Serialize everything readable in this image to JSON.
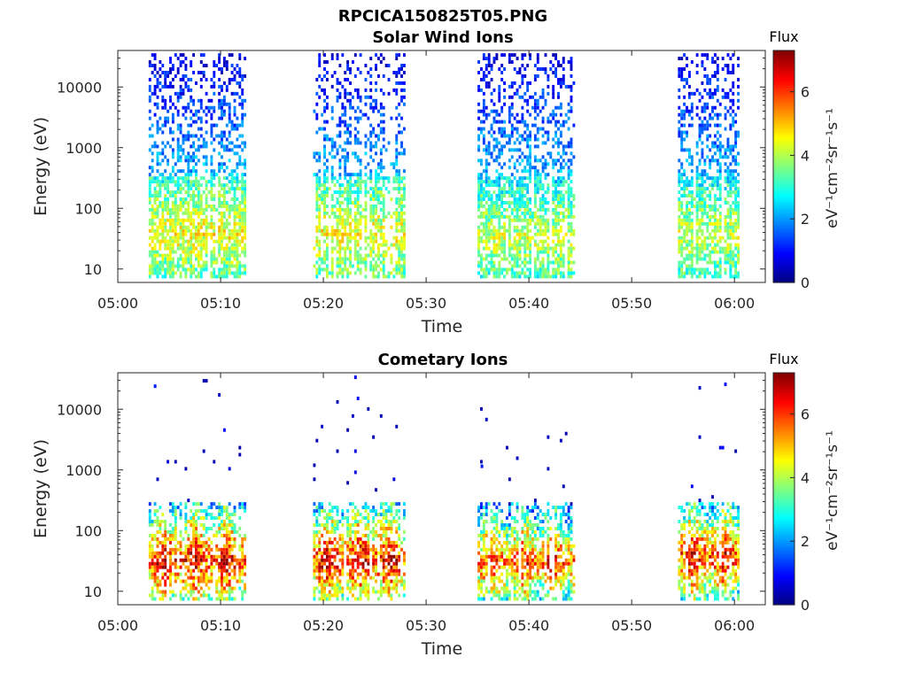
{
  "figure_title": "RPCICA150825T05.PNG",
  "panels": [
    {
      "title": "Solar Wind Ions",
      "ylabel": "Energy (eV)",
      "xlabel": "Time",
      "colorbar_title": "Flux",
      "colorbar_label": "eV⁻¹cm⁻²sr⁻¹s⁻¹",
      "colorbar_ticks": [
        "0",
        "2",
        "4",
        "6"
      ]
    },
    {
      "title": "Cometary Ions",
      "ylabel": "Energy (eV)",
      "xlabel": "Time",
      "colorbar_title": "Flux",
      "colorbar_label": "eV⁻¹cm⁻²sr⁻¹s⁻¹",
      "colorbar_ticks": [
        "0",
        "2",
        "4",
        "6"
      ]
    }
  ],
  "chart_data": [
    {
      "type": "heatmap",
      "title": "Solar Wind Ions",
      "xlabel": "Time",
      "ylabel": "Energy (eV)",
      "x_ticks": [
        "05:00",
        "05:10",
        "05:20",
        "05:30",
        "05:40",
        "05:50",
        "06:00"
      ],
      "x_range_minutes": [
        0,
        63
      ],
      "y_ticks": [
        "10",
        "100",
        "1000",
        "10000"
      ],
      "y_scale": "log",
      "y_range": [
        6,
        40000
      ],
      "color_range": [
        0,
        7.3
      ],
      "colormap": "jet",
      "colorbar_title": "Flux",
      "data_blocks": [
        {
          "start": "05:03",
          "end": "05:12.5",
          "peak_flux": 4.5,
          "peak_energy_eV": 35
        },
        {
          "start": "05:19",
          "end": "05:28",
          "peak_flux": 4.5,
          "peak_energy_eV": 35
        },
        {
          "start": "05:35",
          "end": "05:44.5",
          "peak_flux": 4.2,
          "peak_energy_eV": 30
        },
        {
          "start": "05:54.5",
          "end": "06:00.5",
          "peak_flux": 4.2,
          "peak_energy_eV": 35
        }
      ]
    },
    {
      "type": "heatmap",
      "title": "Cometary Ions",
      "xlabel": "Time",
      "ylabel": "Energy (eV)",
      "x_ticks": [
        "05:00",
        "05:10",
        "05:20",
        "05:30",
        "05:40",
        "05:50",
        "06:00"
      ],
      "x_range_minutes": [
        0,
        63
      ],
      "y_ticks": [
        "10",
        "100",
        "1000",
        "10000"
      ],
      "y_scale": "log",
      "y_range": [
        6,
        40000
      ],
      "color_range": [
        0,
        7.3
      ],
      "colormap": "jet",
      "colorbar_title": "Flux",
      "data_blocks": [
        {
          "start": "05:03",
          "end": "05:12.5",
          "peak_flux": 7.0,
          "peak_energy_eV": 30
        },
        {
          "start": "05:19",
          "end": "05:28",
          "peak_flux": 7.0,
          "peak_energy_eV": 30
        },
        {
          "start": "05:35",
          "end": "05:44.5",
          "peak_flux": 6.5,
          "peak_energy_eV": 28
        },
        {
          "start": "05:54.5",
          "end": "06:00.5",
          "peak_flux": 6.8,
          "peak_energy_eV": 35
        }
      ],
      "isolated_points": [
        {
          "time": "05:03.5",
          "energy_eV": 24000
        },
        {
          "time": "05:35.3",
          "energy_eV": 1150
        }
      ]
    }
  ]
}
